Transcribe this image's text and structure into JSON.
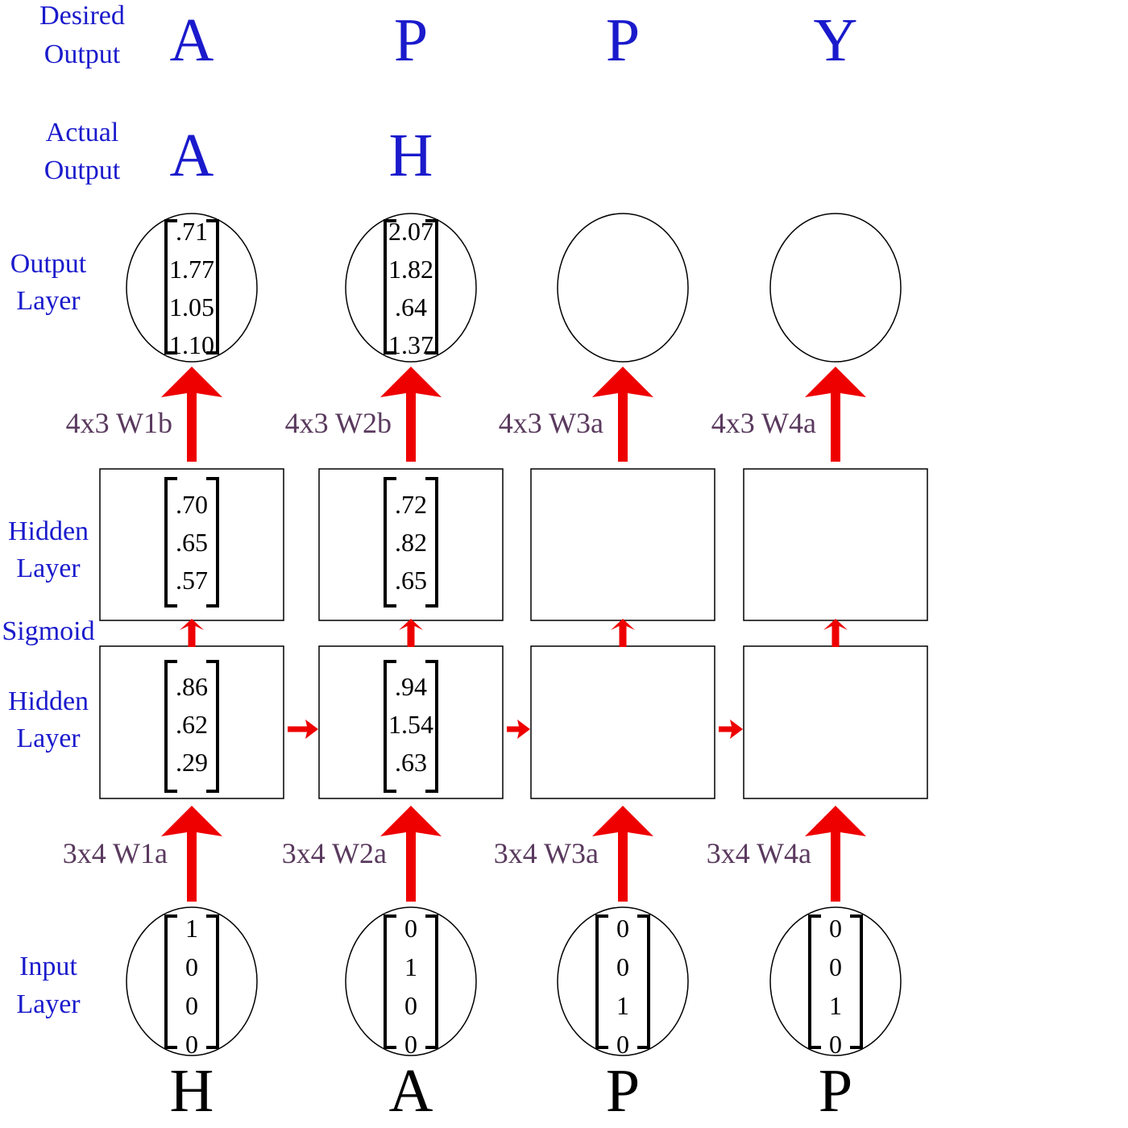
{
  "row_labels": {
    "desired_output": [
      "Desired",
      "Output"
    ],
    "actual_output": [
      "Actual",
      "Output"
    ],
    "output_layer": [
      "Output",
      "Layer"
    ],
    "hidden_layer_top": [
      "Hidden",
      "Layer"
    ],
    "sigmoid": "Sigmoid",
    "hidden_layer_bottom": [
      "Hidden",
      "Layer"
    ],
    "input_layer": [
      "Input",
      "Layer"
    ]
  },
  "columns": [
    {
      "desired": "A",
      "actual": "A",
      "output_vector": [
        ".71",
        "1.77",
        "1.05",
        "1.10"
      ],
      "output_weight": "4x3 W1b",
      "hidden_activated": [
        ".70",
        ".65",
        ".57"
      ],
      "hidden_raw": [
        ".86",
        ".62",
        ".29"
      ],
      "input_weight": "3x4 W1a",
      "input_vector": [
        "1",
        "0",
        "0",
        "0"
      ],
      "input_char": "H"
    },
    {
      "desired": "P",
      "actual": "H",
      "output_vector": [
        "2.07",
        "1.82",
        ".64",
        "1.37"
      ],
      "output_weight": "4x3 W2b",
      "hidden_activated": [
        ".72",
        ".82",
        ".65"
      ],
      "hidden_raw": [
        ".94",
        "1.54",
        ".63"
      ],
      "input_weight": "3x4 W2a",
      "input_vector": [
        "0",
        "1",
        "0",
        "0"
      ],
      "input_char": "A"
    },
    {
      "desired": "P",
      "actual": "",
      "output_vector": [],
      "output_weight": "4x3 W3a",
      "hidden_activated": [],
      "hidden_raw": [],
      "input_weight": "3x4 W3a",
      "input_vector": [
        "0",
        "0",
        "1",
        "0"
      ],
      "input_char": "P"
    },
    {
      "desired": "Y",
      "actual": "",
      "output_vector": [],
      "output_weight": "4x3 W4a",
      "hidden_activated": [],
      "hidden_raw": [],
      "input_weight": "3x4 W4a",
      "input_vector": [
        "0",
        "0",
        "1",
        "0"
      ],
      "input_char": "P"
    }
  ],
  "colors": {
    "label_blue": "#1a1acc",
    "weight_purple": "#5a3a5e",
    "arrow_red": "#ee0000"
  }
}
